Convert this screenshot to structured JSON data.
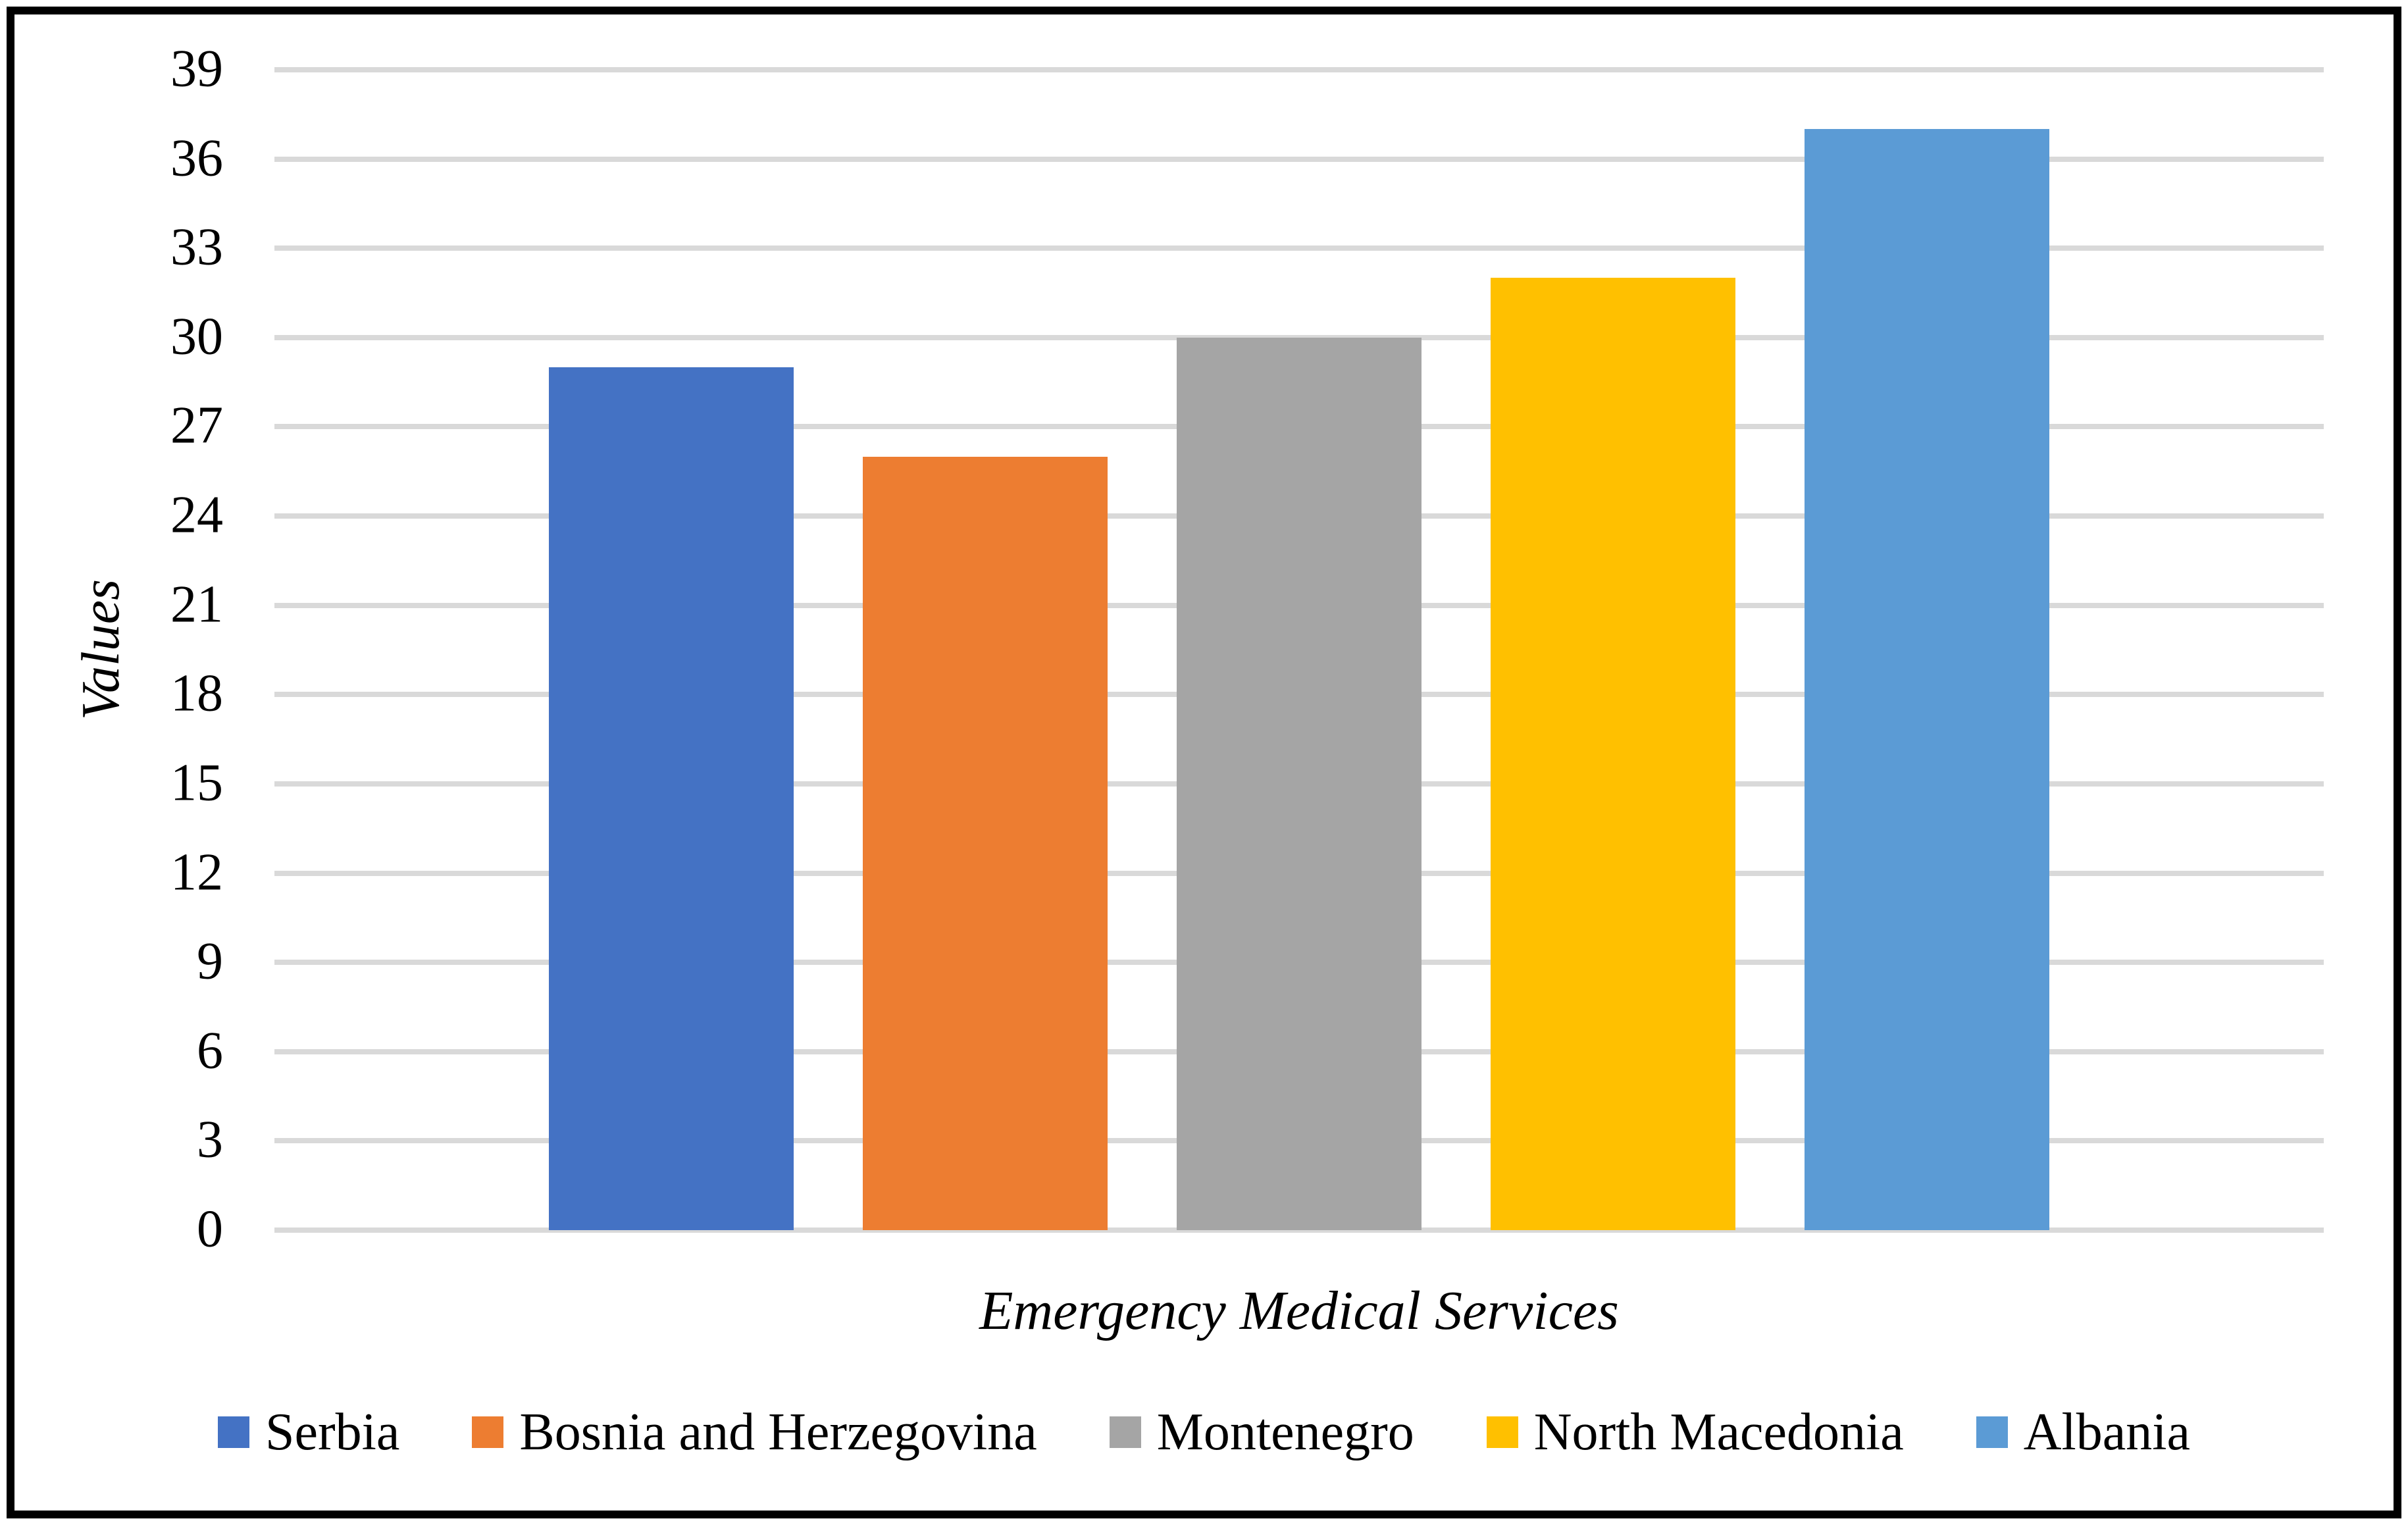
{
  "chart_data": {
    "type": "bar",
    "title": "",
    "xlabel": "Emergency Medical Services",
    "ylabel": "Values",
    "categories": [
      "Emergency Medical Services"
    ],
    "series": [
      {
        "name": "Serbia",
        "color": "#4472C4",
        "values": [
          29
        ]
      },
      {
        "name": "Bosnia and Herzegovina",
        "color": "#ED7D31",
        "values": [
          26
        ]
      },
      {
        "name": "Montenegro",
        "color": "#A5A5A5",
        "values": [
          30
        ]
      },
      {
        "name": "North Macedonia",
        "color": "#FFC000",
        "values": [
          32
        ]
      },
      {
        "name": "Albania",
        "color": "#5B9BD5",
        "values": [
          37
        ]
      }
    ],
    "ylim": [
      0,
      39
    ],
    "ytick_step": 3,
    "yticks": [
      0,
      3,
      6,
      9,
      12,
      15,
      18,
      21,
      24,
      27,
      30,
      33,
      36,
      39
    ],
    "grid": true,
    "gridline_color": "#D9D9D9",
    "legend_position": "bottom"
  }
}
